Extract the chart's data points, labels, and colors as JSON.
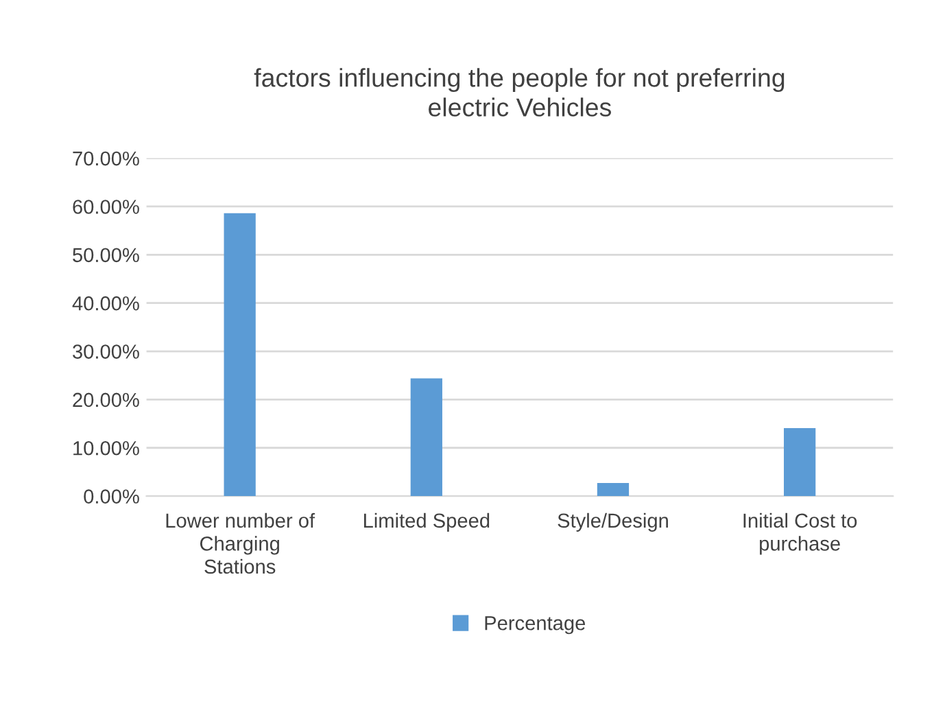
{
  "chart_data": {
    "type": "bar",
    "title": "factors influencing the people for not preferring electric Vehicles",
    "categories": [
      "Lower number of Charging Stations",
      "Limited Speed",
      "Style/Design",
      "Initial Cost to purchase"
    ],
    "series": [
      {
        "name": "Percentage",
        "color": "#5b9bd5",
        "values": [
          58.6,
          24.4,
          2.7,
          14.1
        ]
      }
    ],
    "ylim": [
      0,
      70
    ],
    "yticks": [
      {
        "value": 0,
        "label": "0.00%"
      },
      {
        "value": 10,
        "label": "10.00%"
      },
      {
        "value": 20,
        "label": "20.00%"
      },
      {
        "value": 30,
        "label": "30.00%"
      },
      {
        "value": 40,
        "label": "40.00%"
      },
      {
        "value": 50,
        "label": "50.00%"
      },
      {
        "value": 60,
        "label": "60.00%"
      },
      {
        "value": 70,
        "label": "70.00%"
      }
    ],
    "grid": "y",
    "legend": "bottom"
  }
}
